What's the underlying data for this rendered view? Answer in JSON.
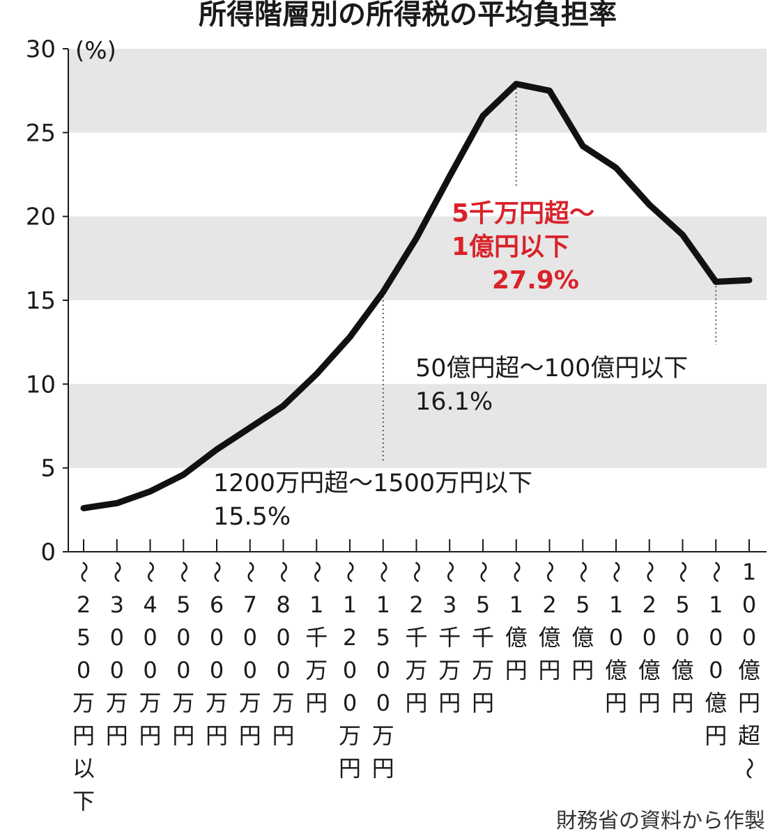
{
  "chart_data": {
    "type": "line",
    "title": "所得階層別の所得税の平均負担率",
    "ylabel": "(%)",
    "ylim": [
      0,
      30
    ],
    "yticks": [
      "0",
      "5",
      "10",
      "15",
      "20",
      "25",
      "30"
    ],
    "categories": [
      "〜250万円以下",
      "〜300万円",
      "〜400万円",
      "〜500万円",
      "〜600万円",
      "〜700万円",
      "〜800万円",
      "〜1千万円",
      "〜1200万円",
      "〜1500万円",
      "〜2千万円",
      "〜3千万円",
      "〜5千万円",
      "〜1億円",
      "〜2億円",
      "〜5億円",
      "〜10億円",
      "〜20億円",
      "〜50億円",
      "〜100億円",
      "100億円超〜"
    ],
    "category_lines": [
      [
        "〜",
        "2",
        "5",
        "0",
        "万",
        "円",
        "以",
        "下"
      ],
      [
        "〜",
        "3",
        "0",
        "0",
        "万",
        "円"
      ],
      [
        "〜",
        "4",
        "0",
        "0",
        "万",
        "円"
      ],
      [
        "〜",
        "5",
        "0",
        "0",
        "万",
        "円"
      ],
      [
        "〜",
        "6",
        "0",
        "0",
        "万",
        "円"
      ],
      [
        "〜",
        "7",
        "0",
        "0",
        "万",
        "円"
      ],
      [
        "〜",
        "8",
        "0",
        "0",
        "万",
        "円"
      ],
      [
        "〜",
        "1",
        "千",
        "万",
        "円"
      ],
      [
        "〜",
        "1",
        "2",
        "0",
        "0",
        "万",
        "円"
      ],
      [
        "〜",
        "1",
        "5",
        "0",
        "0",
        "万",
        "円"
      ],
      [
        "〜",
        "2",
        "千",
        "万",
        "円"
      ],
      [
        "〜",
        "3",
        "千",
        "万",
        "円"
      ],
      [
        "〜",
        "5",
        "千",
        "万",
        "円"
      ],
      [
        "〜",
        "1",
        "億",
        "円"
      ],
      [
        "〜",
        "2",
        "億",
        "円"
      ],
      [
        "〜",
        "5",
        "億",
        "円"
      ],
      [
        "〜",
        "1",
        "0",
        "億",
        "円"
      ],
      [
        "〜",
        "2",
        "0",
        "億",
        "円"
      ],
      [
        "〜",
        "5",
        "0",
        "億",
        "円"
      ],
      [
        "〜",
        "1",
        "0",
        "0",
        "億",
        "円"
      ],
      [
        "1",
        "0",
        "0",
        "億",
        "円",
        "超",
        "〜"
      ]
    ],
    "series": [
      {
        "values": [
          2.6,
          2.9,
          3.6,
          4.6,
          6.1,
          7.4,
          8.7,
          10.6,
          12.8,
          15.5,
          18.7,
          22.4,
          26.0,
          27.9,
          27.5,
          24.2,
          22.9,
          20.7,
          18.9,
          16.1,
          16.2
        ]
      }
    ],
    "grid": "alternating horizontal bands",
    "annotations": [
      {
        "index": 13,
        "lines": [
          "5千万円超〜",
          "1億円以下",
          "27.9%"
        ],
        "color": "#d9222a"
      },
      {
        "index": 19,
        "lines": [
          "50億円超〜100億円以下",
          "16.1%"
        ],
        "color": "#1a1a1a"
      },
      {
        "index": 9,
        "lines": [
          "1200万円超〜1500万円以下",
          "15.5%"
        ],
        "color": "#1a1a1a"
      }
    ],
    "source": "財務省の資料から作製"
  }
}
